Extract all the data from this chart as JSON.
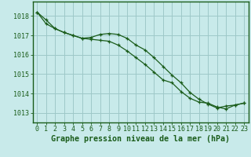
{
  "title": "Graphe pression niveau de la mer (hPa)",
  "background_color": "#c8eaea",
  "grid_color": "#9ec8c8",
  "line_color": "#1a5c1a",
  "marker_color": "#1a5c1a",
  "border_color": "#1a5c1a",
  "text_color": "#1a5c1a",
  "series1": {
    "x": [
      0,
      1,
      2,
      3,
      4,
      5,
      6,
      7,
      8,
      9,
      10,
      11,
      12,
      13,
      14,
      15,
      16,
      17,
      18,
      19,
      20,
      21,
      22,
      23
    ],
    "y": [
      1018.2,
      1017.8,
      1017.35,
      1017.15,
      1017.0,
      1016.85,
      1016.9,
      1017.05,
      1017.1,
      1017.05,
      1016.85,
      1016.5,
      1016.25,
      1015.85,
      1015.4,
      1014.95,
      1014.55,
      1014.05,
      1013.7,
      1013.45,
      1013.25,
      1013.35,
      1013.4,
      1013.5
    ]
  },
  "series2": {
    "x": [
      0,
      1,
      2,
      3,
      4,
      5,
      6,
      7,
      8,
      9,
      10,
      11,
      12,
      13,
      14,
      15,
      16,
      17,
      18,
      19,
      20,
      21,
      22,
      23
    ],
    "y": [
      1018.2,
      1017.6,
      1017.35,
      1017.15,
      1017.0,
      1016.85,
      1016.8,
      1016.75,
      1016.7,
      1016.5,
      1016.2,
      1015.85,
      1015.5,
      1015.1,
      1014.7,
      1014.55,
      1014.1,
      1013.75,
      1013.55,
      1013.5,
      1013.3,
      1013.2,
      1013.4,
      1013.5
    ]
  },
  "ylim": [
    1012.5,
    1018.75
  ],
  "yticks": [
    1013,
    1014,
    1015,
    1016,
    1017,
    1018
  ],
  "xlim": [
    -0.5,
    23.5
  ],
  "xticks": [
    0,
    1,
    2,
    3,
    4,
    5,
    6,
    7,
    8,
    9,
    10,
    11,
    12,
    13,
    14,
    15,
    16,
    17,
    18,
    19,
    20,
    21,
    22,
    23
  ],
  "tick_fontsize": 6.0,
  "title_fontsize": 7.2
}
